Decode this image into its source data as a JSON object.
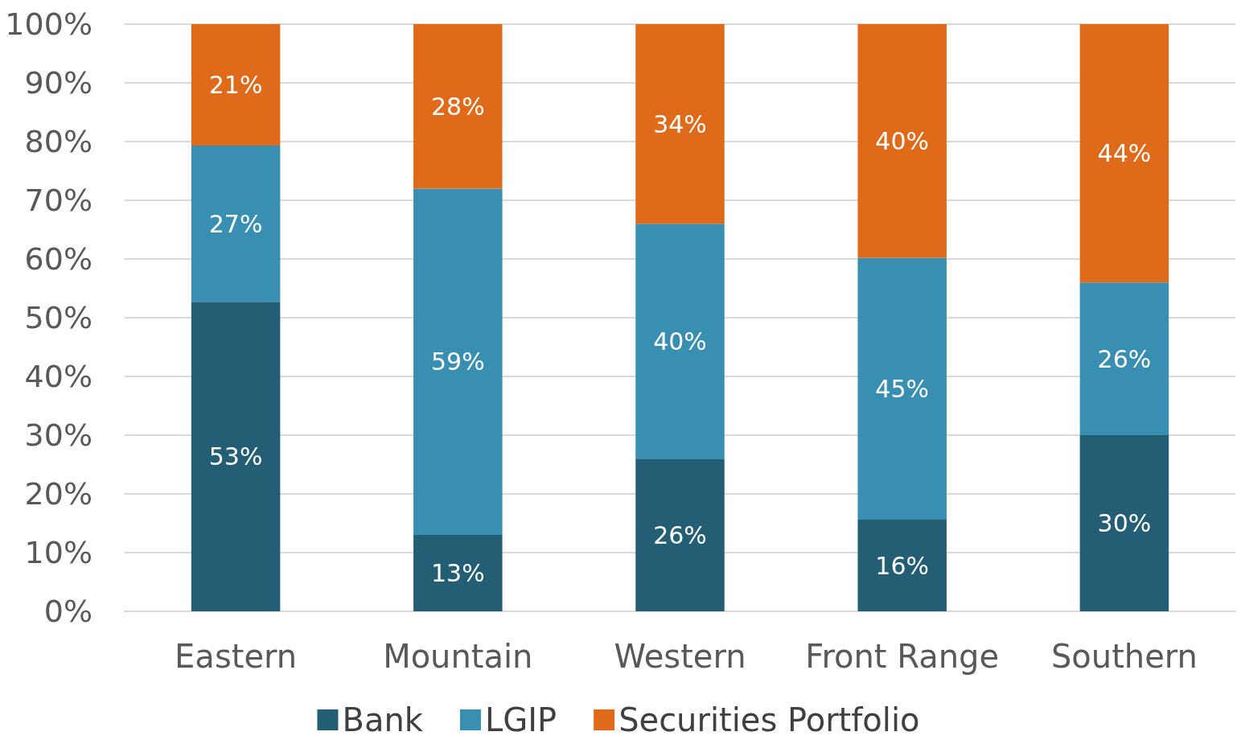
{
  "chart_data": {
    "type": "bar",
    "stacked": true,
    "categories": [
      "Eastern",
      "Mountain",
      "Western",
      "Front Range",
      "Southern"
    ],
    "series": [
      {
        "name": "Bank",
        "color": "#245e75",
        "values": [
          52.7,
          13,
          26,
          15.6,
          30
        ],
        "value_labels": [
          "53%",
          "13%",
          "26%",
          "16%",
          "30%"
        ]
      },
      {
        "name": "LGIP",
        "color": "#388fb1",
        "values": [
          26.6,
          59,
          40,
          44.6,
          26
        ],
        "value_labels": [
          "27%",
          "59%",
          "40%",
          "45%",
          "26%"
        ]
      },
      {
        "name": "Securities Portfolio",
        "color": "#de6a1a",
        "values": [
          20.7,
          28,
          34,
          39.8,
          44
        ],
        "value_labels": [
          "21%",
          "28%",
          "34%",
          "40%",
          "44%"
        ]
      }
    ],
    "ylim": [
      0,
      100
    ],
    "yticks": [
      {
        "value": 0,
        "label": "0%"
      },
      {
        "value": 10,
        "label": "10%"
      },
      {
        "value": 20,
        "label": "20%"
      },
      {
        "value": 30,
        "label": "30%"
      },
      {
        "value": 40,
        "label": "40%"
      },
      {
        "value": 50,
        "label": "50%"
      },
      {
        "value": 60,
        "label": "60%"
      },
      {
        "value": 70,
        "label": "70%"
      },
      {
        "value": 80,
        "label": "80%"
      },
      {
        "value": 90,
        "label": "90%"
      },
      {
        "value": 100,
        "label": "100%"
      }
    ],
    "grid": "y",
    "legend": "bottom"
  }
}
